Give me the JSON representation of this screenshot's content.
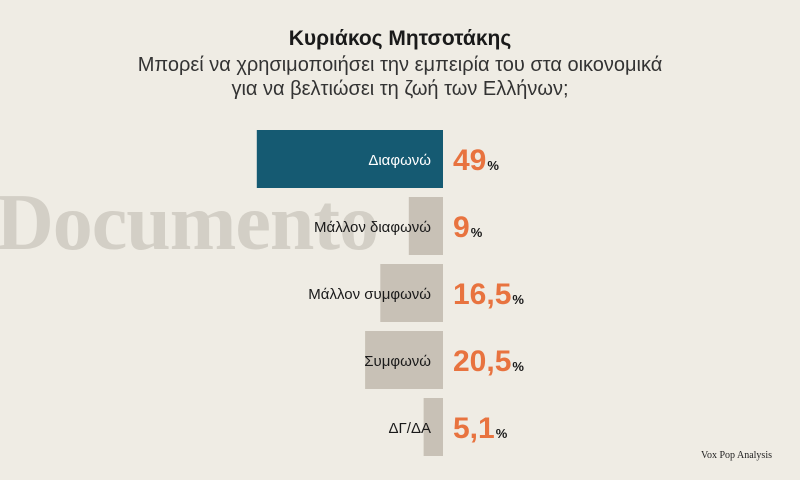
{
  "header": {
    "title": "Κυριάκος Μητσοτάκης",
    "subtitle_line1": "Μπορεί να χρησιμοποιήσει την εμπειρία του στα οικονομικά",
    "subtitle_line2": "για να βελτιώσει τη ζωή των Ελλήνων;"
  },
  "watermark": "Documento",
  "source": "Vox Pop Analysis",
  "colors": {
    "highlight_bar": "#155a72",
    "bar": "#c8c1b6",
    "value": "#e8733f",
    "background": "#efece4"
  },
  "chart_data": {
    "type": "bar",
    "orientation": "horizontal",
    "categories": [
      "Διαφωνώ",
      "Μάλλον διαφωνώ",
      "Μάλλον συμφωνώ",
      "Συμφωνώ",
      "ΔΓ/ΔΑ"
    ],
    "values": [
      49,
      9,
      16.5,
      20.5,
      5.1
    ],
    "value_labels": [
      "49",
      "9",
      "16,5",
      "20,5",
      "5,1"
    ],
    "unit": "%",
    "highlighted_index": 0,
    "title": "Κυριάκος Μητσοτάκης",
    "xlabel": "",
    "ylabel": ""
  }
}
